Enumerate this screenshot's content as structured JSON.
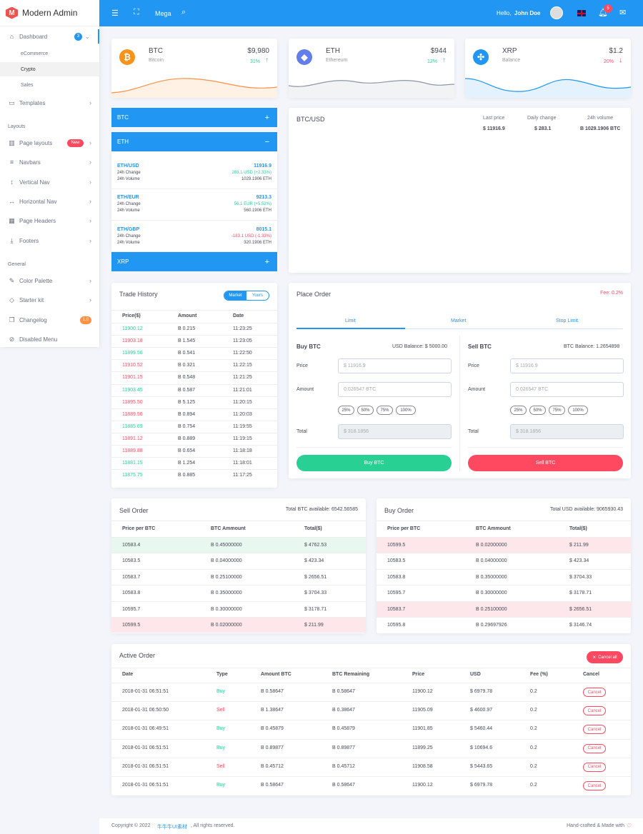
{
  "brand": {
    "logo_letter": "M",
    "name": "Modern Admin"
  },
  "sidebar": {
    "dashboard": {
      "label": "Dashboard",
      "badge": "3"
    },
    "dashboard_sub": [
      "eCommerce",
      "Crypto",
      "Sales"
    ],
    "templates": "Templates",
    "section_layouts": "Layouts",
    "page_layouts": {
      "label": "Page layouts",
      "badge": "New"
    },
    "navbars": "Navbars",
    "vertical_nav": "Vertical Nav",
    "horizontal_nav": "Horizontal Nav",
    "page_headers": "Page Headers",
    "footers": "Footers",
    "section_general": "General",
    "color_palette": "Color Palette",
    "starter_kit": "Starter kit",
    "changelog": {
      "label": "Changelog",
      "badge": "1.0"
    },
    "disabled_menu": "Disabled Menu"
  },
  "topbar": {
    "mega": "Mega",
    "hello": "Hello,",
    "user": "John Doe",
    "notif_count": "5",
    "accent": "#2196f3"
  },
  "tickers": [
    {
      "name": "BTC",
      "sub": "Bitcoin",
      "price": "$9,980",
      "change": "31%",
      "dir": "up"
    },
    {
      "name": "ETH",
      "sub": "Ethereum",
      "price": "$944",
      "change": "12%",
      "dir": "up"
    },
    {
      "name": "XRP",
      "sub": "Balance",
      "price": "$1.2",
      "change": "20%",
      "dir": "down"
    }
  ],
  "accordion": {
    "btc": "BTC",
    "eth": "ETH",
    "xrp": "XRP",
    "plus": "+",
    "minus": "−"
  },
  "pairs": [
    {
      "name": "ETH/USD",
      "price": "11916.9",
      "change": "283.1 USD (+2.33%)",
      "volume": "1029.1906 ETH",
      "dir": "up"
    },
    {
      "name": "ETH/EUR",
      "price": "9213.3",
      "change": "56.1 EUR (+5.52%)",
      "volume": "560.1906 ETH",
      "dir": "up"
    },
    {
      "name": "ETH/GBP",
      "price": "8015.1",
      "change": "-183.1 USD (-1.33%)",
      "volume": "320.1906 ETH",
      "dir": "down"
    }
  ],
  "pair_labels": {
    "change": "24h Change",
    "volume": "24h Volume"
  },
  "chart_panel": {
    "title": "BTC/USD",
    "last_price_label": "Last price",
    "last_price": "$ 11916.9",
    "daily_change_label": "Daily change",
    "daily_change": "$ 283.1",
    "volume_label": "24h volume",
    "volume": "B 1029.1906 BTC"
  },
  "trade_history": {
    "title": "Trade History",
    "tab_market": "Market",
    "tab_yours": "Yours",
    "headers": [
      "Price($)",
      "Amount",
      "Date"
    ],
    "rows": [
      {
        "price": "11900.12",
        "amount": "B 0.215",
        "date": "11:23:25",
        "dir": "up"
      },
      {
        "price": "11903.18",
        "amount": "B 1.545",
        "date": "11:23:05",
        "dir": "down"
      },
      {
        "price": "11899.56",
        "amount": "B 0.541",
        "date": "11:22:50",
        "dir": "up"
      },
      {
        "price": "11910.52",
        "amount": "B 0.321",
        "date": "11:22:15",
        "dir": "down"
      },
      {
        "price": "11901.15",
        "amount": "B 0.548",
        "date": "11:21:25",
        "dir": "down"
      },
      {
        "price": "11903.45",
        "amount": "B 0.587",
        "date": "11:21:01",
        "dir": "up"
      },
      {
        "price": "11895.50",
        "amount": "B 5.125",
        "date": "11:20:15",
        "dir": "down"
      },
      {
        "price": "11889.56",
        "amount": "B 0.894",
        "date": "11:20:03",
        "dir": "down"
      },
      {
        "price": "11885.69",
        "amount": "B 0.754",
        "date": "11:19:55",
        "dir": "up"
      },
      {
        "price": "11891.12",
        "amount": "B 0.889",
        "date": "11:19:15",
        "dir": "down"
      },
      {
        "price": "11889.88",
        "amount": "B 0.654",
        "date": "11:18:18",
        "dir": "down"
      },
      {
        "price": "11881.15",
        "amount": "B 1.254",
        "date": "11:18:01",
        "dir": "up"
      },
      {
        "price": "11875.75",
        "amount": "B 0.885",
        "date": "11:17:25",
        "dir": "up"
      }
    ]
  },
  "place_order": {
    "title": "Place Order",
    "fee": "Fee: 0.2%",
    "tabs": [
      "Limit",
      "Market",
      "Stop Limit"
    ],
    "buy": {
      "title": "Buy BTC",
      "balance": "USD Balance: $ 5000.00",
      "price_label": "Price",
      "price_ph": "$ 11916.9",
      "amount_label": "Amount",
      "amount_ph": "0.026547 BTC",
      "total_label": "Total",
      "total_ph": "$ 318.1856",
      "button": "Buy BTC"
    },
    "sell": {
      "title": "Sell BTC",
      "balance": "BTC Balance: 1.2654898",
      "price_label": "Price",
      "price_ph": "$ 11916.9",
      "amount_label": "Amount",
      "amount_ph": "0.026547 BTC",
      "total_label": "Total",
      "total_ph": "$ 318.1856",
      "button": "Sell BTC"
    },
    "percents": [
      "25%",
      "50%",
      "75%",
      "100%"
    ]
  },
  "sell_order": {
    "title": "Sell Order",
    "available": "Total BTC available: 6542.56585",
    "headers": [
      "Price per BTC",
      "BTC Ammount",
      "Total($)"
    ],
    "rows": [
      [
        "10583.4",
        "B 0.45000000",
        "$ 4762.53"
      ],
      [
        "10583.5",
        "B 0.04000000",
        "$ 423.34"
      ],
      [
        "10583.7",
        "B 0.25100000",
        "$ 2656.51"
      ],
      [
        "10583.8",
        "B 0.35000000",
        "$ 3704.33"
      ],
      [
        "10595.7",
        "B 0.30000000",
        "$ 3178.71"
      ],
      [
        "10599.5",
        "B 0.02000000",
        "$ 211.99"
      ]
    ]
  },
  "buy_order": {
    "title": "Buy Order",
    "available": "Total USD available: 9065930.43",
    "headers": [
      "Price per BTC",
      "BTC Ammount",
      "Total($)"
    ],
    "rows": [
      [
        "10599.5",
        "B 0.02000000",
        "$ 211.99"
      ],
      [
        "10583.5",
        "B 0.04000000",
        "$ 423.34"
      ],
      [
        "10583.8",
        "B 0.35000000",
        "$ 3704.33"
      ],
      [
        "10595.7",
        "B 0.30000000",
        "$ 3178.71"
      ],
      [
        "10583.7",
        "B 0.25100000",
        "$ 2656.51"
      ],
      [
        "10595.8",
        "B 0.29697926",
        "$ 3146.74"
      ]
    ]
  },
  "active_order": {
    "title": "Active Order",
    "cancel_all": "Cancel all",
    "headers": [
      "Date",
      "Type",
      "Amount BTC",
      "BTC Remaining",
      "Price",
      "USD",
      "Fee (%)",
      "Cancel"
    ],
    "rows": [
      [
        "2018-01-31 06:51:51",
        "Buy",
        "B 0.58647",
        "B 0.58647",
        "11900.12",
        "$ 6979.78",
        "0.2"
      ],
      [
        "2018-01-31 06:50:50",
        "Sell",
        "B 1.38647",
        "B 0.38647",
        "11905.09",
        "$ 4600.97",
        "0.2"
      ],
      [
        "2018-01-31 06:49:51",
        "Buy",
        "B 0.45879",
        "B 0.45879",
        "11901.85",
        "$ 5460.44",
        "0.2"
      ],
      [
        "2018-01-31 06:51:51",
        "Buy",
        "B 0.89877",
        "B 0.89877",
        "11899.25",
        "$ 10694.6",
        "0.2"
      ],
      [
        "2018-01-31 06:51:51",
        "Sell",
        "B 0.45712",
        "B 0.45712",
        "11908.58",
        "$ 5443.65",
        "0.2"
      ],
      [
        "2018-01-31 06:51:51",
        "Buy",
        "B 0.58647",
        "B 0.58647",
        "11900.12",
        "$ 6979.78",
        "0.2"
      ]
    ],
    "cancel_label": "Cancel"
  },
  "footer": {
    "copyright": "Copyright © 2022",
    "link": "牛牛牛UI素材",
    "rights": ", All rights reserved.",
    "right": "Hand-crafted & Made with"
  }
}
